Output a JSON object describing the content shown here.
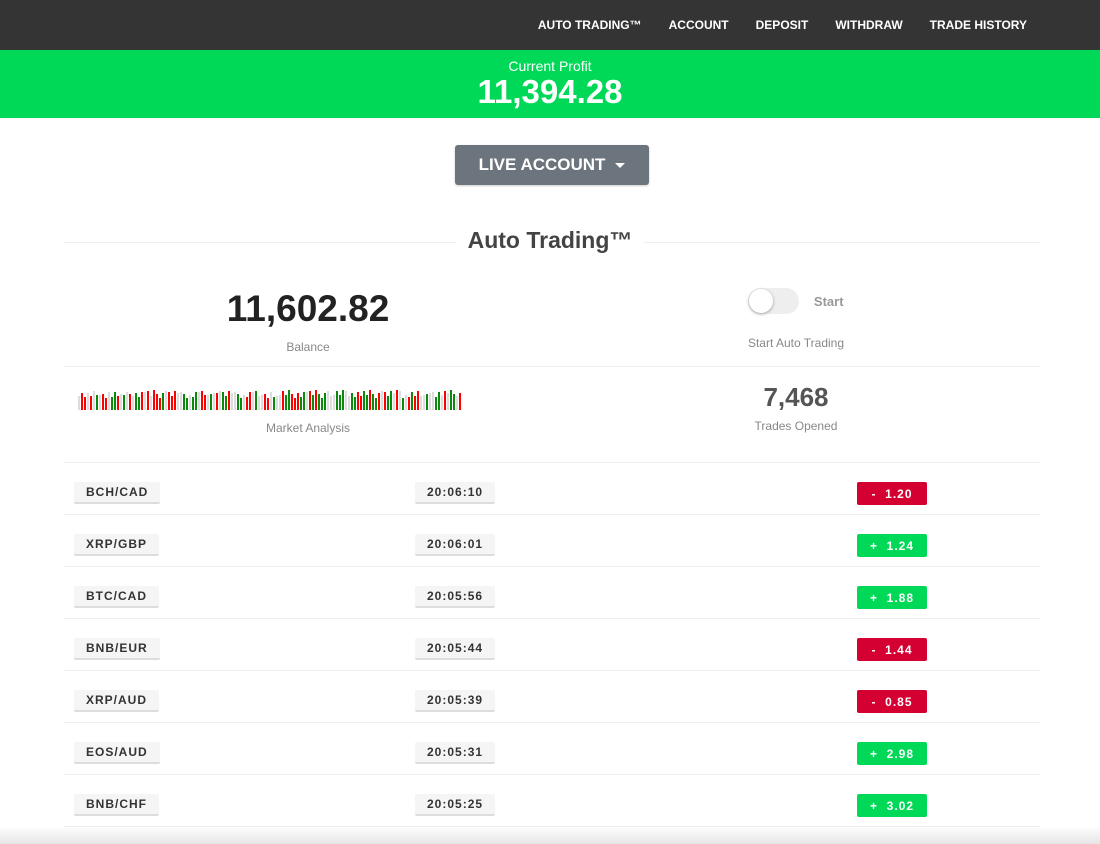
{
  "nav": [
    "AUTO TRADING™",
    "ACCOUNT",
    "DEPOSIT",
    "WITHDRAW",
    "TRADE HISTORY"
  ],
  "profit": {
    "label": "Current Profit",
    "value": "11,394.28"
  },
  "account_button": "LIVE ACCOUNT",
  "section_title": "Auto Trading™",
  "balance": {
    "value": "11,602.82",
    "label": "Balance"
  },
  "toggle": {
    "label": "Start",
    "caption": "Start Auto Trading",
    "on": false
  },
  "market": {
    "label": "Market Analysis",
    "bars": "nrrnrngnrrnggrngnrnggrnrnrrrgnrrrnnggnggnrrngnrnggrnnggnrrngnnrrngnnrggrrrggnrgrgggnnngggnnggrrggrggrnrggnrngnrgrrnngnnggnrnggnr"
  },
  "trades_opened": {
    "value": "7,468",
    "label": "Trades Opened"
  },
  "colors": {
    "green": "#00d957",
    "red": "#d50032",
    "bar_green": "#0a8a0a",
    "bar_red": "#ff0000",
    "bar_neutral": "#dddddd"
  },
  "trades": [
    {
      "pair": "BCH/CAD",
      "time": "20:06:10",
      "sign": "-",
      "amount": "1.20"
    },
    {
      "pair": "XRP/GBP",
      "time": "20:06:01",
      "sign": "+",
      "amount": "1.24"
    },
    {
      "pair": "BTC/CAD",
      "time": "20:05:56",
      "sign": "+",
      "amount": "1.88"
    },
    {
      "pair": "BNB/EUR",
      "time": "20:05:44",
      "sign": "-",
      "amount": "1.44"
    },
    {
      "pair": "XRP/AUD",
      "time": "20:05:39",
      "sign": "-",
      "amount": "0.85"
    },
    {
      "pair": "EOS/AUD",
      "time": "20:05:31",
      "sign": "+",
      "amount": "2.98"
    },
    {
      "pair": "BNB/CHF",
      "time": "20:05:25",
      "sign": "+",
      "amount": "3.02"
    }
  ]
}
